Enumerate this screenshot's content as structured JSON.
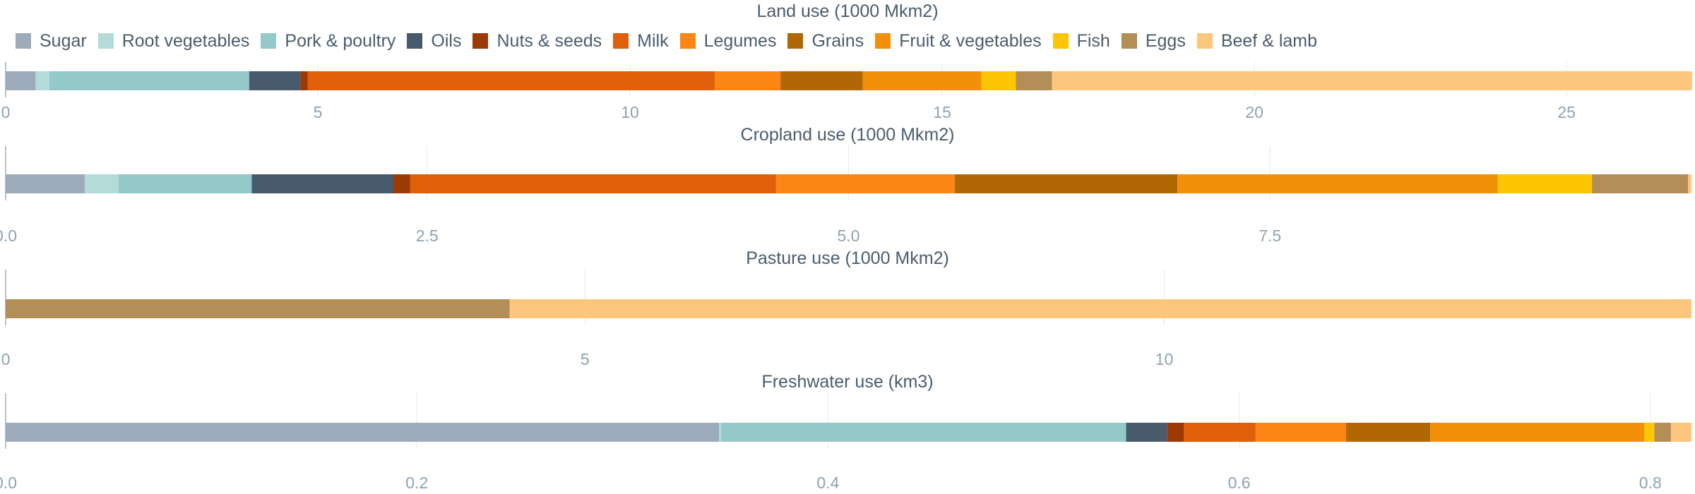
{
  "chart_data": {
    "type": "bar",
    "stacked": true,
    "orientation": "horizontal",
    "legend_position": "top-left",
    "grid": true,
    "categories": [
      "Sugar",
      "Root vegetables",
      "Pork & poultry",
      "Oils",
      "Nuts & seeds",
      "Milk",
      "Legumes",
      "Grains",
      "Fruit & vegetables",
      "Fish",
      "Eggs",
      "Beef & lamb"
    ],
    "colors": [
      "#9eabba",
      "#b3dbd8",
      "#93c9c8",
      "#485b6c",
      "#9c3a06",
      "#df5f0b",
      "#fd8513",
      "#b26705",
      "#f29109",
      "#fdc605",
      "#b38e57",
      "#fcc77c"
    ],
    "panels": [
      {
        "title": "Land use (1000 Mkm2)",
        "xlim": [
          0,
          27
        ],
        "ticks": [
          0,
          5,
          10,
          15,
          20,
          25
        ],
        "tick_labels": [
          "0",
          "5",
          "10",
          "15",
          "20",
          "25"
        ],
        "values": [
          0.48,
          0.22,
          3.2,
          0.82,
          0.12,
          6.52,
          1.05,
          1.32,
          1.9,
          0.55,
          0.58,
          10.25
        ]
      },
      {
        "title": "Cropland use (1000 Mkm2)",
        "xlim": [
          0,
          10
        ],
        "ticks": [
          0,
          2.5,
          5,
          7.5
        ],
        "tick_labels": [
          "0.0",
          "2.5",
          "5.0",
          "7.5"
        ],
        "values": [
          0.47,
          0.2,
          0.79,
          0.84,
          0.1,
          2.17,
          1.06,
          1.32,
          1.9,
          0.56,
          0.57,
          0.02
        ]
      },
      {
        "title": "Pasture use (1000 Mkm2)",
        "xlim": [
          0,
          14.55
        ],
        "ticks": [
          0,
          5,
          10
        ],
        "tick_labels": [
          "0",
          "5",
          "10"
        ],
        "values": [
          0,
          0,
          0,
          0,
          0,
          0,
          0,
          0,
          0,
          0,
          4.35,
          10.2
        ]
      },
      {
        "title": "Freshwater use (km3)",
        "xlim": [
          0,
          0.82
        ],
        "ticks": [
          0,
          0.2,
          0.4,
          0.6,
          0.8
        ],
        "tick_labels": [
          "0.0",
          "0.2",
          "0.4",
          "0.6",
          "0.8"
        ],
        "values": [
          0.347,
          0.001,
          0.197,
          0.02,
          0.008,
          0.035,
          0.044,
          0.041,
          0.104,
          0.005,
          0.008,
          0.01
        ]
      }
    ]
  }
}
